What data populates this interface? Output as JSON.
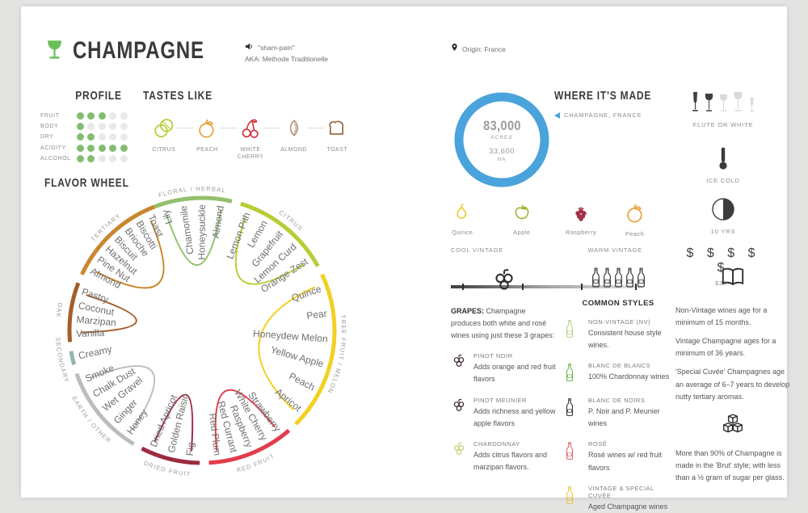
{
  "page": {
    "title": "CHAMPAGNE",
    "pronunciation": "\"sham-pain\"",
    "aka": "AKA: Methode Traditionelle",
    "origin": "Origin: France",
    "accent_green": "#6cbf5a"
  },
  "profile": {
    "title": "PROFILE",
    "max": 5,
    "rows": [
      {
        "label": "FRUIT",
        "value": 3
      },
      {
        "label": "BODY",
        "value": 1
      },
      {
        "label": "DRY",
        "value": 2
      },
      {
        "label": "ACIDITY",
        "value": 5
      },
      {
        "label": "ALCOHOL",
        "value": 2
      }
    ],
    "dot_color": "#84bd71"
  },
  "tastes_like": {
    "title": "TASTES LIKE",
    "items": [
      {
        "label": "CITRUS",
        "icon": "citrus",
        "color": "#b8cc33"
      },
      {
        "label": "PEACH",
        "icon": "peach",
        "color": "#e8a13c"
      },
      {
        "label": "WHITE CHERRY",
        "icon": "cherry",
        "color": "#cf3a42"
      },
      {
        "label": "ALMOND",
        "icon": "almond",
        "color": "#b38a6d"
      },
      {
        "label": "TOAST",
        "icon": "toast",
        "color": "#9a6b42"
      }
    ]
  },
  "flavor_wheel": {
    "title": "FLAVOR WHEEL",
    "label_color": "#6f6f6f",
    "rim_label_color": "#9a9a9a",
    "categories": [
      {
        "name": "FLORAL / HERBAL",
        "color": "#93c06b",
        "start": -21,
        "end": 13,
        "labels": [
          "Lily",
          "Chamomile",
          "Honeysuckle",
          "Almond"
        ]
      },
      {
        "name": "CITRUS",
        "color": "#b8cc33",
        "start": 17,
        "end": 61,
        "labels": [
          "Lemon Pith",
          "Lemon",
          "Grapefruit",
          "Lemon Curd",
          "Orange Zest"
        ]
      },
      {
        "name": "TREE FRUIT / MELON",
        "color": "#f3d023",
        "start": 65,
        "end": 135,
        "labels": [
          "Quince",
          "Pear",
          "Honeydew Melon",
          "Yellow Apple",
          "Peach",
          "Apricot"
        ]
      },
      {
        "name": "RED FRUIT",
        "color": "#e23c4b",
        "start": 139,
        "end": 177,
        "labels": [
          "Strawberry",
          "White Cherry",
          "Raspberry",
          "Red Currant",
          "Red Plum"
        ]
      },
      {
        "name": "DRIED FRUIT",
        "color": "#9c2a3d",
        "start": 181,
        "end": 207,
        "labels": [
          "Fig",
          "Golden Raisin",
          "Dried Apricot"
        ]
      },
      {
        "name": "EARTH / OTHER",
        "color": "#bcbcbc",
        "start": 211,
        "end": 251,
        "labels": [
          "Honey",
          "Ginger",
          "Wet Gravel",
          "Chalk Dust",
          "Smoke"
        ]
      },
      {
        "name": "SECONDARY",
        "color": "#93b5ac",
        "start": 255,
        "end": 261,
        "labels": [
          "Creamy"
        ]
      },
      {
        "name": "OAK",
        "color": "#a55d2b",
        "start": 265,
        "end": 291,
        "labels": [
          "Vanilla",
          "Marzipan",
          "Coconut",
          "Pastry"
        ]
      },
      {
        "name": "TERTIARY",
        "color": "#c9872f",
        "start": 295,
        "end": 339,
        "labels": [
          "Almond",
          "Pine Nut",
          "Hazelnut",
          "Biscuit",
          "Brioche",
          "Biscotti",
          "Toast"
        ]
      }
    ]
  },
  "where": {
    "title": "WHERE IT'S MADE",
    "region": "CHAMPAGNE, FRANCE",
    "acres": "83,000",
    "acres_label": "ACRES",
    "ha": "33,600",
    "ha_label": "HA",
    "ring_color": "#4aa3db"
  },
  "serving": {
    "glass_label": "FLUTE OR WHITE",
    "temp_label": "ICE COLD",
    "age_label": "10 YRS",
    "price": "$ $ $ $ $",
    "price_label": "$30+"
  },
  "vintage_scale": {
    "cool_label": "COOL VINTAGE",
    "warm_label": "WARM VINTAGE",
    "items": [
      {
        "label": "Quince",
        "icon": "quince",
        "color": "#e5cf2f",
        "pos": 6
      },
      {
        "label": "Apple",
        "icon": "apple",
        "color": "#9cba3a",
        "pos": 37
      },
      {
        "label": "Raspberry",
        "icon": "raspberry",
        "color": "#a53048",
        "pos": 68
      },
      {
        "label": "Peach",
        "icon": "peach",
        "color": "#e8a13c",
        "pos": 96
      }
    ]
  },
  "grapes": {
    "heading_bold": "GRAPES:",
    "intro": " Champagne produces both white and rosé wines using just these 3 grapes:",
    "items": [
      {
        "name": "PINOT NOIR",
        "desc": "Adds orange and red fruit flavors",
        "color": "#3a2633"
      },
      {
        "name": "PINOT MEUNIER",
        "desc": "Adds richness and yellow apple flavors",
        "color": "#3a2633"
      },
      {
        "name": "CHARDONNAY",
        "desc": "Adds citrus flavors and marzipan flavors.",
        "color": "#c5d06e"
      }
    ]
  },
  "styles": {
    "title": "COMMON STYLES",
    "items": [
      {
        "name": "NON-VINTAGE (NV)",
        "desc": "Consistent house style wines.",
        "color": "#b5d68f"
      },
      {
        "name": "BLANC DE BLANCS",
        "desc": "100% Chardonnay wines",
        "color": "#72b24a"
      },
      {
        "name": "BLANC DE NOIRS",
        "desc": "P. Noir and P. Meunier wines",
        "color": "#2e2e2e"
      },
      {
        "name": "ROSÉ",
        "desc": "Rosé wines w/ red fruit flavors",
        "color": "#e2606b"
      },
      {
        "name": "VINTAGE & SPECIAL CUVÉE",
        "desc": "Aged Champagne wines",
        "color": "#e9c53b"
      }
    ]
  },
  "aging": {
    "paragraphs": [
      "Non-Vintage wines age for a minimum of 15 months.",
      "Vintage Champagne ages for a minimum of 36 years.",
      "'Special Cuvée' Champagnes age an average of 6–7 years to develop nutty tertiary aromas."
    ],
    "sweetness": "More than 90% of Champagne is made in the 'Brut' style; with less than a ½ gram of sugar per glass."
  }
}
